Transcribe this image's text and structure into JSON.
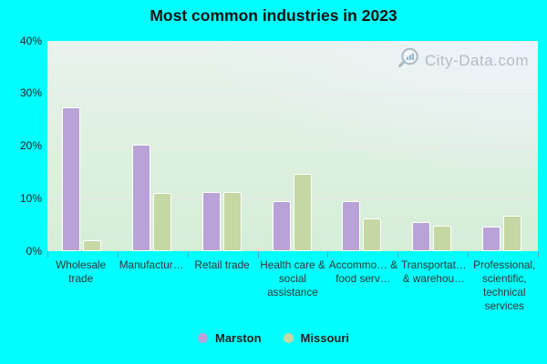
{
  "title": "Most common industries in 2023",
  "watermark": {
    "text": "City-Data.com"
  },
  "legend": {
    "items": [
      {
        "label": "Marston",
        "color": "#b9a2d8"
      },
      {
        "label": "Missouri",
        "color": "#c5d7a3"
      }
    ]
  },
  "chart_data": {
    "type": "bar",
    "title": "Most common industries in 2023",
    "categories": [
      "Wholesale trade",
      "Manufactur…",
      "Retail trade",
      "Health care & social assistance",
      "Accommo… & food serv…",
      "Transportat… & warehou…",
      "Professional, scientific, technical services"
    ],
    "series": [
      {
        "name": "Marston",
        "color": "#b9a2d8",
        "values": [
          27.3,
          20.3,
          11.3,
          9.6,
          9.5,
          5.5,
          4.6
        ]
      },
      {
        "name": "Missouri",
        "color": "#c5d7a3",
        "values": [
          2.0,
          11.0,
          11.3,
          14.8,
          6.2,
          4.9,
          6.7
        ]
      }
    ],
    "xlabel": "",
    "ylabel": "",
    "ylim": [
      0,
      40
    ],
    "yticks": [
      "0%",
      "10%",
      "20%",
      "30%",
      "40%"
    ],
    "grid": true,
    "legend_position": "bottom"
  }
}
